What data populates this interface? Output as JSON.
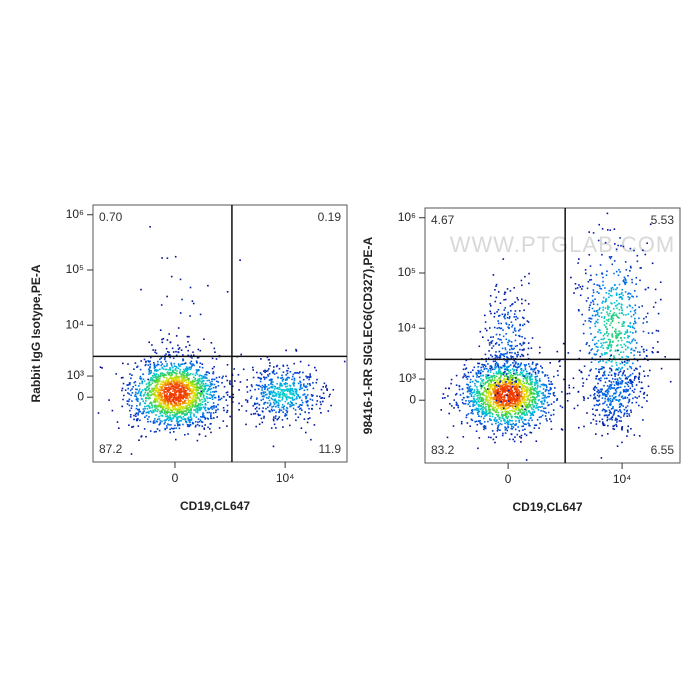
{
  "chart_data": [
    {
      "type": "scatter",
      "scale": "biexponential",
      "x_label": "CD19,CL647",
      "y_label": "Rabbit IgG Isotype,PE-A",
      "xlim": [
        -4600,
        54000
      ],
      "ylim": [
        -7400,
        1500000
      ],
      "xticks": [
        0,
        {
          "value": 10000,
          "label": "10⁴"
        }
      ],
      "yticks": [
        0,
        {
          "value": 1000,
          "label": "10³"
        },
        {
          "value": 10000,
          "label": "10⁴"
        },
        {
          "value": 100000,
          "label": "10⁵"
        },
        {
          "value": 1000000,
          "label": "10⁶"
        }
      ],
      "quadrant_gate": [
        2250,
        2650
      ],
      "values": [
        0.7,
        0.19,
        87.2,
        11.9
      ],
      "value_labels": [
        "0.70",
        "0.19",
        "87.2",
        "11.9"
      ]
    },
    {
      "type": "scatter",
      "scale": "biexponential",
      "x_label": "CD19,CL647",
      "y_label": "98416-1-RR SIGLEC6(CD327),PE-A",
      "watermark": "WWW.PTGLAB.COM",
      "xlim": [
        -4400,
        46000
      ],
      "ylim": [
        -6800,
        1500000
      ],
      "xticks": [
        0,
        {
          "value": 10000,
          "label": "10⁴"
        }
      ],
      "yticks": [
        0,
        {
          "value": 1000,
          "label": "10³"
        },
        {
          "value": 10000,
          "label": "10⁴"
        },
        {
          "value": 100000,
          "label": "10⁵"
        },
        {
          "value": 1000000,
          "label": "10⁶"
        }
      ],
      "quadrant_gate": [
        2130,
        2650
      ],
      "values": [
        4.67,
        5.53,
        83.2,
        6.55
      ]
    }
  ]
}
